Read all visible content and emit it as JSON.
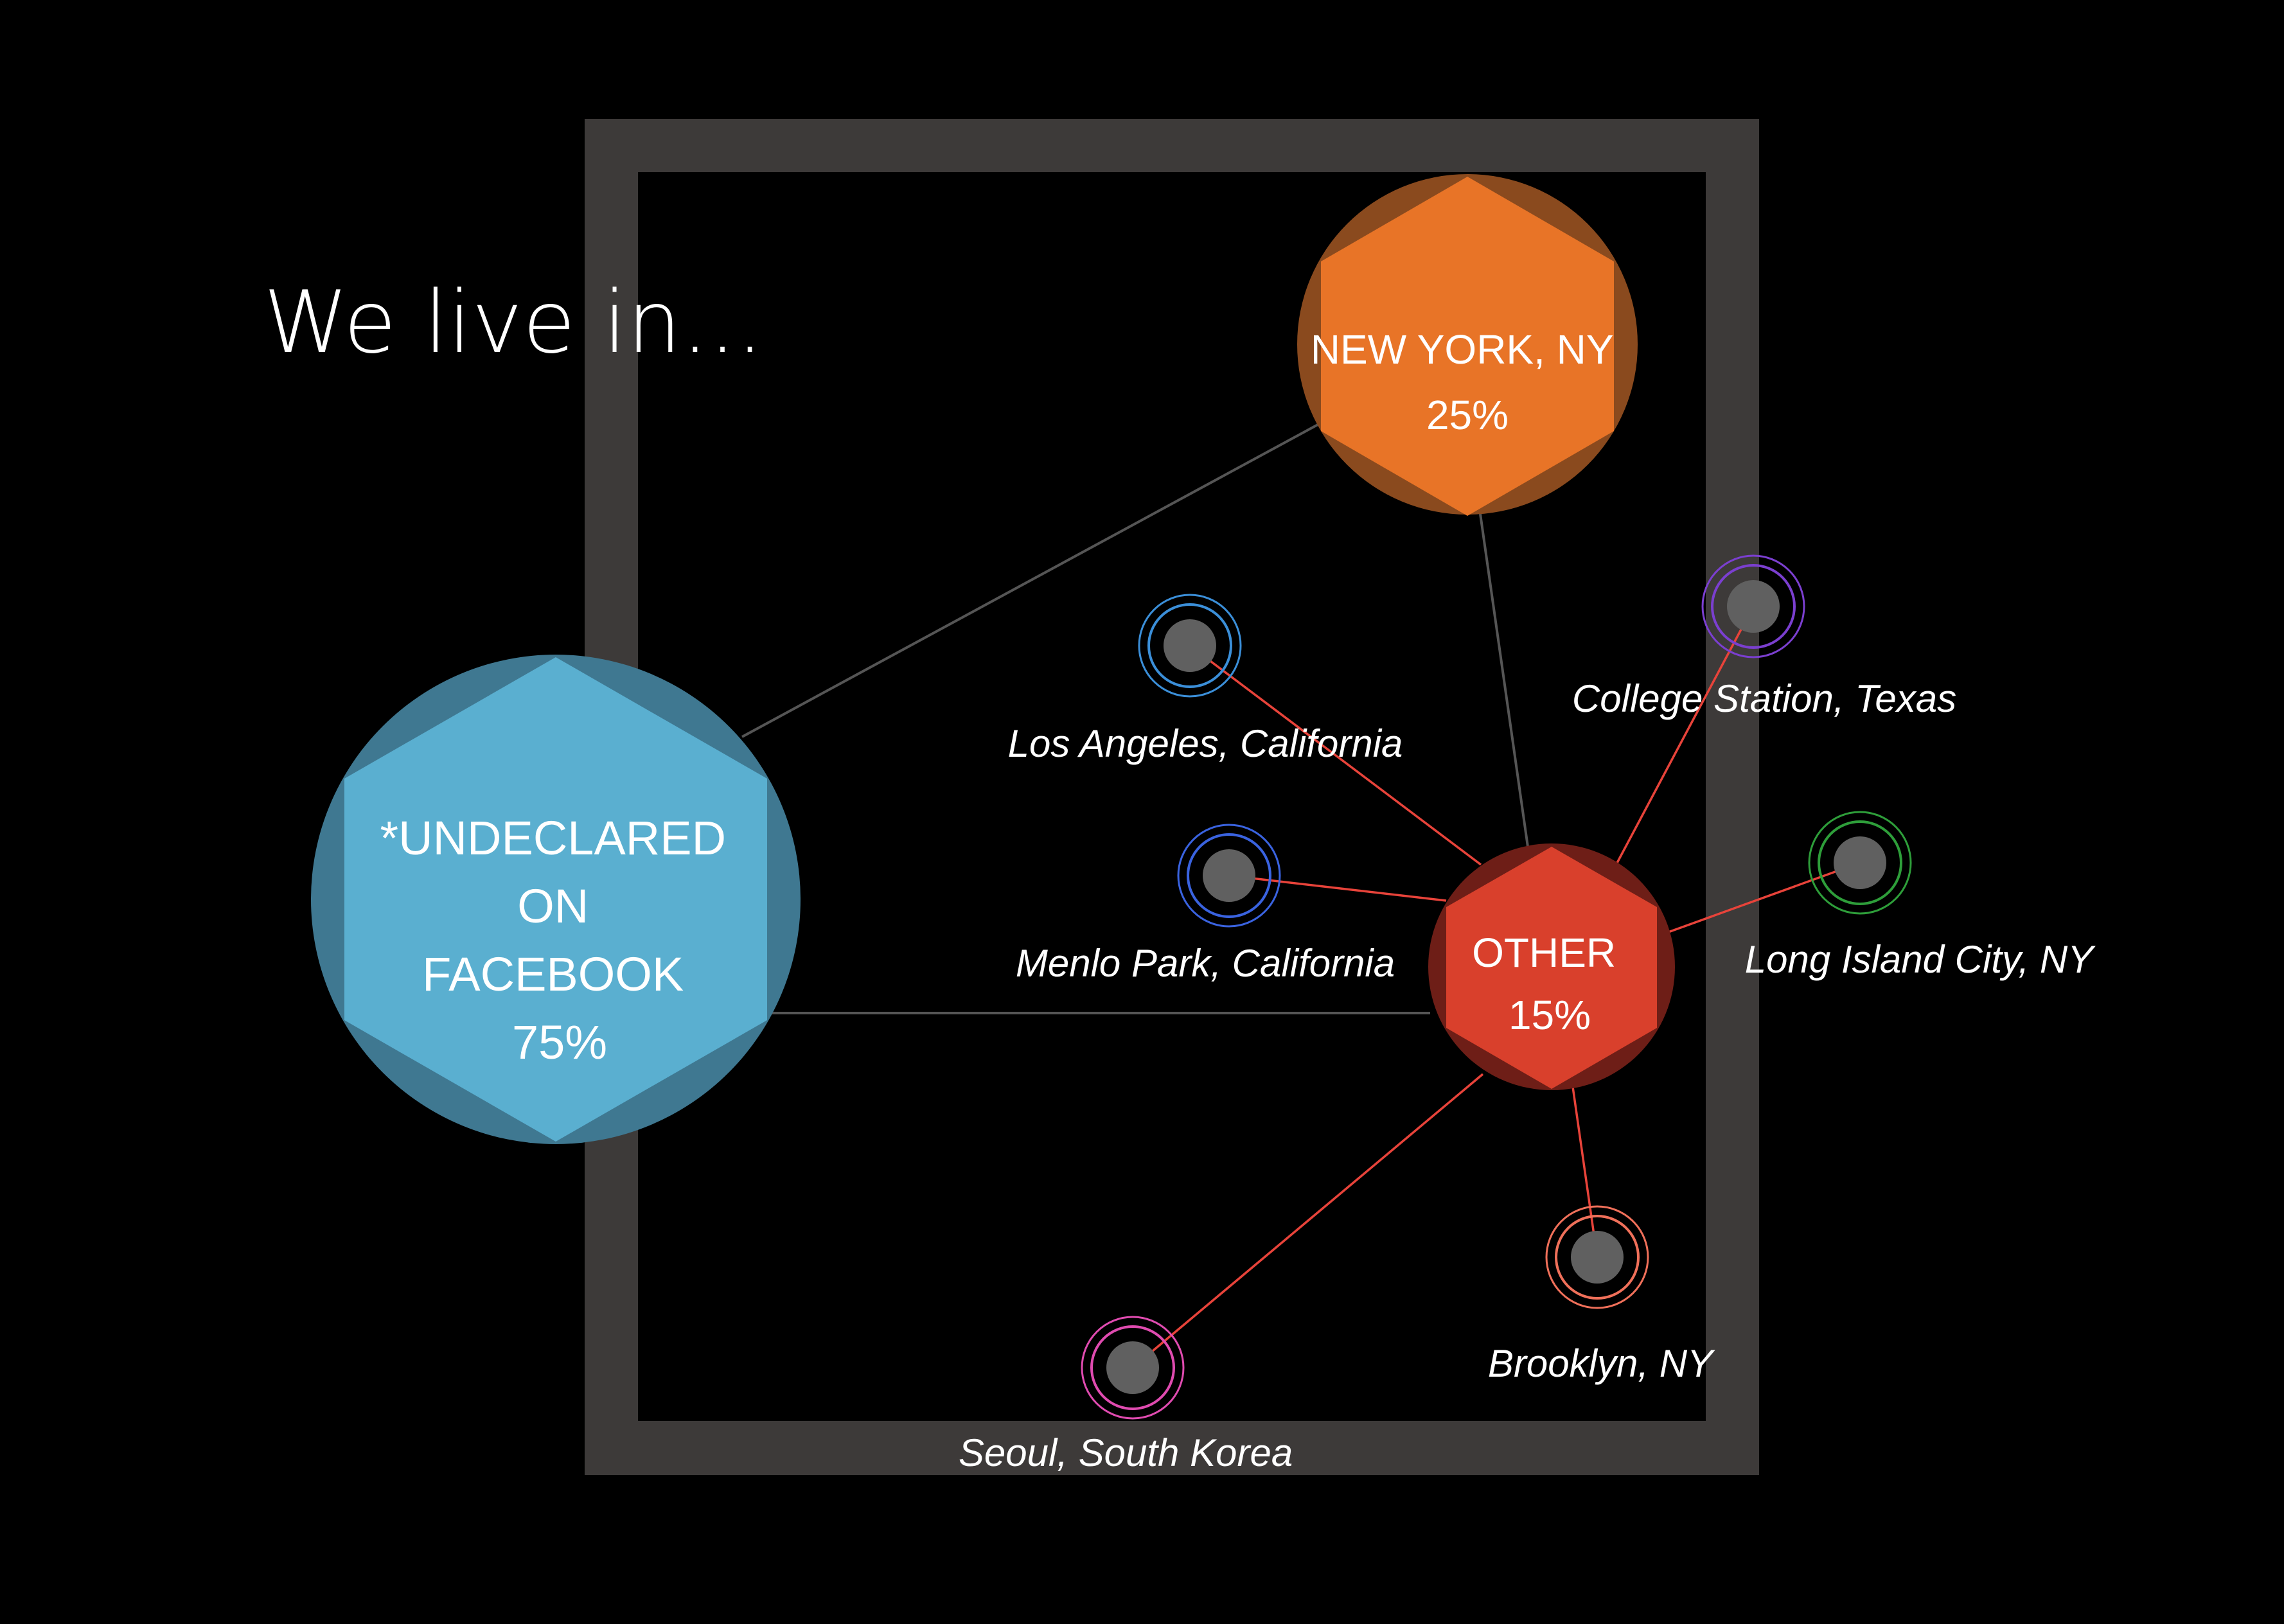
{
  "title": "We live in...",
  "hubs": {
    "undeclared": {
      "lines": [
        "*UNDECLARED",
        "ON",
        "FACEBOOK"
      ],
      "percent": "75%",
      "value": 75,
      "color": "#5AAFD0",
      "ring_color": "#3F7891"
    },
    "new_york": {
      "lines": [
        "NEW YORK, NY"
      ],
      "percent": "25%",
      "value": 25,
      "color": "#E87427",
      "ring_color": "#8A4A1E"
    },
    "other": {
      "lines": [
        "OTHER"
      ],
      "percent": "15%",
      "value": 15,
      "color": "#D9402C",
      "ring_color": "#6E1E17"
    }
  },
  "cities": [
    {
      "id": "los-angeles",
      "label": "Los Angeles, California",
      "ring_color": "#3B8FD9"
    },
    {
      "id": "menlo-park",
      "label": "Menlo Park, California",
      "ring_color": "#3A63E0"
    },
    {
      "id": "college-station",
      "label": "College Station, Texas",
      "ring_color": "#7B3FD0"
    },
    {
      "id": "long-island-city",
      "label": "Long Island City, NY",
      "ring_color": "#2E9E3A"
    },
    {
      "id": "brooklyn",
      "label": "Brooklyn, NY",
      "ring_color": "#F0705A"
    },
    {
      "id": "seoul",
      "label": "Seoul, South Korea",
      "ring_color": "#E04BB0"
    }
  ],
  "colors": {
    "background": "#000000",
    "frame": "#3D3A39",
    "hub_link": "#555555",
    "city_link": "#E8433A",
    "city_node": "#606060",
    "text": "#FFFFFF"
  }
}
